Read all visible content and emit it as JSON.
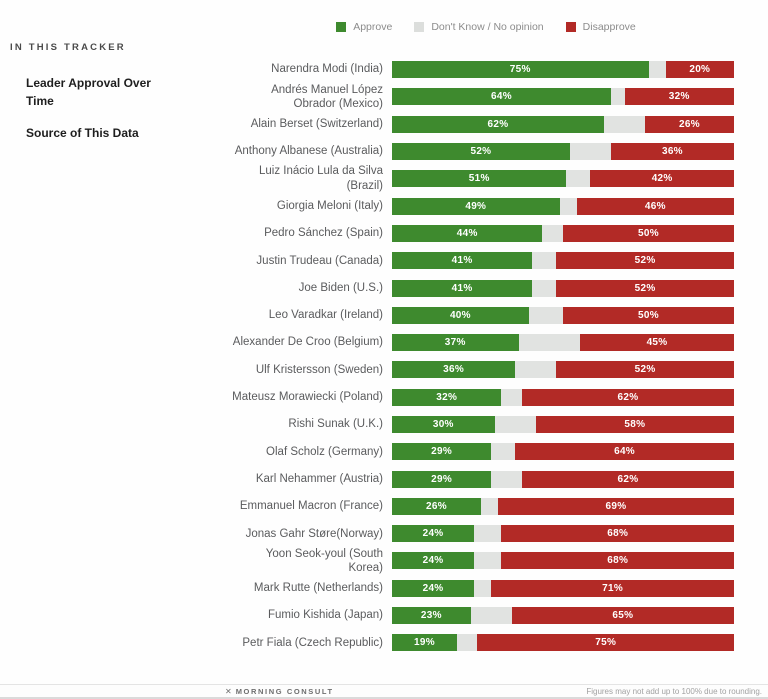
{
  "colors": {
    "approve": "#3e8a2e",
    "dont_know": "#e1e3e1",
    "disapprove": "#b22a26"
  },
  "legend": {
    "items": [
      {
        "key": "approve",
        "label": "Approve",
        "color": "#3e8a2e"
      },
      {
        "key": "dont-know",
        "label": "Don't Know / No opinion",
        "color": "#dcdedc"
      },
      {
        "key": "disapprove",
        "label": "Disapprove",
        "color": "#b22a26"
      }
    ]
  },
  "sidebar": {
    "heading": "IN THIS TRACKER",
    "items": [
      {
        "label": "Leader Approval Over Time"
      },
      {
        "label": "Source of This Data"
      }
    ]
  },
  "chart_data": {
    "type": "bar",
    "orientation": "horizontal-stacked",
    "series": [
      "Approve",
      "Don't Know / No opinion",
      "Disapprove"
    ],
    "unit": "%",
    "xlim": [
      0,
      100
    ],
    "value_labels": "inside approve and disapprove segments only",
    "rows": [
      {
        "leader": "Narendra Modi (India)",
        "approve": 75,
        "dont_know": 5,
        "disapprove": 20
      },
      {
        "leader": "Andrés Manuel López Obrador (Mexico)",
        "approve": 64,
        "dont_know": 4,
        "disapprove": 32
      },
      {
        "leader": "Alain Berset (Switzerland)",
        "approve": 62,
        "dont_know": 12,
        "disapprove": 26
      },
      {
        "leader": "Anthony Albanese (Australia)",
        "approve": 52,
        "dont_know": 12,
        "disapprove": 36
      },
      {
        "leader": "Luiz Inácio Lula da Silva (Brazil)",
        "approve": 51,
        "dont_know": 7,
        "disapprove": 42
      },
      {
        "leader": "Giorgia Meloni (Italy)",
        "approve": 49,
        "dont_know": 5,
        "disapprove": 46
      },
      {
        "leader": "Pedro Sánchez (Spain)",
        "approve": 44,
        "dont_know": 6,
        "disapprove": 50
      },
      {
        "leader": "Justin Trudeau (Canada)",
        "approve": 41,
        "dont_know": 7,
        "disapprove": 52
      },
      {
        "leader": "Joe Biden (U.S.)",
        "approve": 41,
        "dont_know": 7,
        "disapprove": 52
      },
      {
        "leader": "Leo Varadkar (Ireland)",
        "approve": 40,
        "dont_know": 10,
        "disapprove": 50
      },
      {
        "leader": "Alexander De Croo (Belgium)",
        "approve": 37,
        "dont_know": 18,
        "disapprove": 45
      },
      {
        "leader": "Ulf Kristersson (Sweden)",
        "approve": 36,
        "dont_know": 12,
        "disapprove": 52
      },
      {
        "leader": "Mateusz Morawiecki (Poland)",
        "approve": 32,
        "dont_know": 6,
        "disapprove": 62
      },
      {
        "leader": "Rishi Sunak (U.K.)",
        "approve": 30,
        "dont_know": 12,
        "disapprove": 58
      },
      {
        "leader": "Olaf Scholz (Germany)",
        "approve": 29,
        "dont_know": 7,
        "disapprove": 64
      },
      {
        "leader": "Karl Nehammer (Austria)",
        "approve": 29,
        "dont_know": 9,
        "disapprove": 62
      },
      {
        "leader": "Emmanuel Macron (France)",
        "approve": 26,
        "dont_know": 5,
        "disapprove": 69
      },
      {
        "leader": "Jonas Gahr Støre(Norway)",
        "approve": 24,
        "dont_know": 8,
        "disapprove": 68
      },
      {
        "leader": "Yoon Seok-youl (South Korea)",
        "approve": 24,
        "dont_know": 8,
        "disapprove": 68
      },
      {
        "leader": "Mark Rutte (Netherlands)",
        "approve": 24,
        "dont_know": 5,
        "disapprove": 71
      },
      {
        "leader": "Fumio Kishida (Japan)",
        "approve": 23,
        "dont_know": 12,
        "disapprove": 65
      },
      {
        "leader": "Petr Fiala (Czech Republic)",
        "approve": 19,
        "dont_know": 6,
        "disapprove": 75
      }
    ]
  },
  "footer": {
    "brand": "MORNING CONSULT",
    "logo_glyph": "✕",
    "note": "Figures may not add up to 100% due to rounding."
  }
}
